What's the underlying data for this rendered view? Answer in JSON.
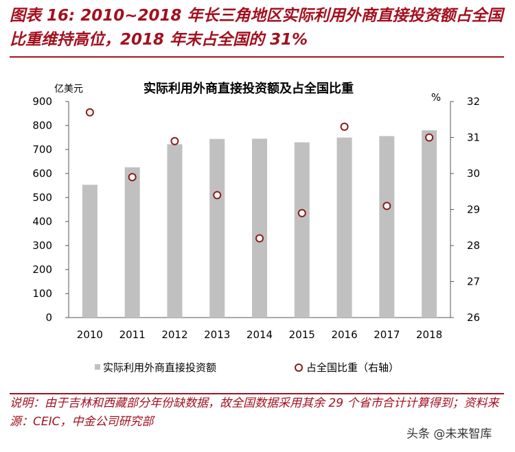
{
  "figure_title": "图表 16: 2010~2018 年长三角地区实际利用外商直接投资额占全国比重维持高位，2018 年末占全国的 31%",
  "note": "说明：由于吉林和西藏部分年份缺数据，故全国数据采用其余 29 个省市合计计算得到；资料来源：CEIC，中金公司研究部",
  "watermark": "头条 @未来智库",
  "colors": {
    "accent": "#a3101e",
    "bar": "#c0c0c0",
    "marker_edge": "#8b1a1a",
    "axis": "#555555"
  },
  "chart_data": {
    "type": "bar",
    "title": "实际利用外商直接投资额及占全国比重",
    "categories": [
      "2010",
      "2011",
      "2012",
      "2013",
      "2014",
      "2015",
      "2016",
      "2017",
      "2018"
    ],
    "series": [
      {
        "name": "实际利用外商直接投资额",
        "type": "bar",
        "axis": "left",
        "values": [
          553,
          626,
          722,
          744,
          745,
          730,
          750,
          756,
          780
        ]
      },
      {
        "name": "占全国比重（右轴）",
        "type": "scatter",
        "axis": "right",
        "values": [
          31.7,
          29.9,
          30.9,
          29.4,
          28.2,
          28.9,
          31.3,
          29.1,
          31.0
        ]
      }
    ],
    "ylabel": "亿美元",
    "y2label": "%",
    "ylim": [
      0,
      900
    ],
    "y2lim": [
      26,
      32
    ],
    "yticks": [
      0,
      100,
      200,
      300,
      400,
      500,
      600,
      700,
      800,
      900
    ],
    "y2ticks": [
      26,
      27,
      28,
      29,
      30,
      31,
      32
    ],
    "grid": false,
    "legend": "bottom"
  }
}
